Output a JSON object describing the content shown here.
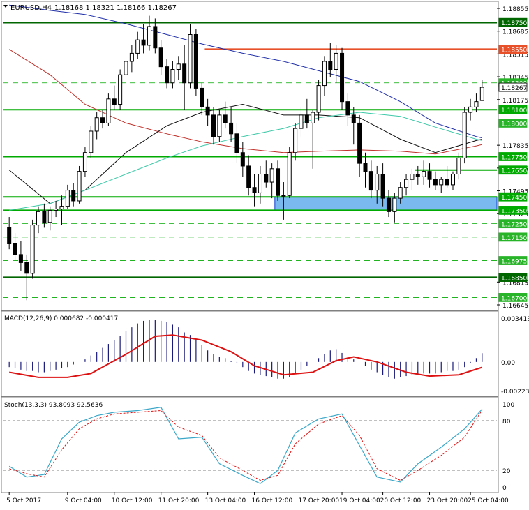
{
  "header": {
    "symbol_label": "EURUSD,H4",
    "ohlc_text": "1.18168 1.18321 1.18166 1.18267"
  },
  "colors": {
    "background": "#ffffff",
    "grid": "#c8c8c8",
    "support_green": "#00aa00",
    "resistance_dark_green": "#006600",
    "resistance_red": "#e8502a",
    "ma_blue": "#1f2ea8",
    "ma_red": "#c0302a",
    "ma_black": "#111111",
    "ma_teal": "#3ec9a8",
    "zone_blue": "#7ab8f0",
    "zone_blue_border": "#1040d0",
    "macd_hist": "#1a1a7a",
    "macd_signal": "#dd1111",
    "stoch_main": "#3aa7c9",
    "stoch_signal": "#dd1111",
    "candle_bear": "#000000",
    "candle_bull": "#ffffff"
  },
  "price_axis": {
    "ticks": [
      "1.18855",
      "1.18685",
      "1.18515",
      "1.18345",
      "1.18175",
      "1.17835",
      "1.17665",
      "1.17495",
      "1.17325",
      "1.16815",
      "1.16645"
    ],
    "level_labels": [
      {
        "text": "1.18750",
        "price": 1.1875,
        "style": "dark"
      },
      {
        "text": "1.18550",
        "price": 1.1855,
        "style": "red"
      },
      {
        "text": "1.18300",
        "price": 1.183,
        "style": "dash"
      },
      {
        "text": "1.18267",
        "price": 1.18267,
        "style": "current"
      },
      {
        "text": "1.18100",
        "price": 1.181,
        "style": "green"
      },
      {
        "text": "1.18000",
        "price": 1.18,
        "style": "dash"
      },
      {
        "text": "1.17750",
        "price": 1.1775,
        "style": "green"
      },
      {
        "text": "1.17650",
        "price": 1.1765,
        "style": "green"
      },
      {
        "text": "1.17450",
        "price": 1.1745,
        "style": "green"
      },
      {
        "text": "1.17350",
        "price": 1.1735,
        "style": "green"
      },
      {
        "text": "1.17250",
        "price": 1.1725,
        "style": "dash"
      },
      {
        "text": "1.17150",
        "price": 1.1715,
        "style": "dash"
      },
      {
        "text": "1.16975",
        "price": 1.16975,
        "style": "dash"
      },
      {
        "text": "1.16850",
        "price": 1.1685,
        "style": "dark"
      },
      {
        "text": "1.16700",
        "price": 1.167,
        "style": "dash"
      }
    ]
  },
  "macd_panel": {
    "label": "MACD(12,26,9) 0.000682 -0.000417",
    "ticks": [
      "0.003413",
      "0.00",
      "-0.002237"
    ]
  },
  "stoch_panel": {
    "label": "Stoch(13,3,3) 93.8093 92.5636",
    "ticks": [
      "100",
      "80",
      "20",
      "0"
    ]
  },
  "time_axis": {
    "labels": [
      "5 Oct 2017",
      "9 Oct 04:00",
      "10 Oct 12:00",
      "11 Oct 20:00",
      "13 Oct 04:00",
      "16 Oct 12:00",
      "17 Oct 20:00",
      "19 Oct 04:00",
      "20 Oct 12:00",
      "23 Oct 20:00",
      "25 Oct 04:00"
    ]
  },
  "chart_data": {
    "type": "candlestick",
    "symbol": "EURUSD",
    "timeframe": "H4",
    "ylim": [
      1.16645,
      1.18855
    ],
    "candles": [
      {
        "o": 1.1722,
        "h": 1.173,
        "l": 1.1706,
        "c": 1.171
      },
      {
        "o": 1.171,
        "h": 1.1718,
        "l": 1.1698,
        "c": 1.1702
      },
      {
        "o": 1.1702,
        "h": 1.1712,
        "l": 1.169,
        "c": 1.1696
      },
      {
        "o": 1.1696,
        "h": 1.1702,
        "l": 1.1668,
        "c": 1.1688
      },
      {
        "o": 1.1688,
        "h": 1.1728,
        "l": 1.1684,
        "c": 1.1724
      },
      {
        "o": 1.1724,
        "h": 1.1738,
        "l": 1.1718,
        "c": 1.1734
      },
      {
        "o": 1.1734,
        "h": 1.174,
        "l": 1.1722,
        "c": 1.1726
      },
      {
        "o": 1.1726,
        "h": 1.1738,
        "l": 1.172,
        "c": 1.1735
      },
      {
        "o": 1.1735,
        "h": 1.1742,
        "l": 1.173,
        "c": 1.1736
      },
      {
        "o": 1.1736,
        "h": 1.1746,
        "l": 1.1724,
        "c": 1.1738
      },
      {
        "o": 1.1738,
        "h": 1.1754,
        "l": 1.1736,
        "c": 1.175
      },
      {
        "o": 1.175,
        "h": 1.1755,
        "l": 1.1738,
        "c": 1.1742
      },
      {
        "o": 1.1742,
        "h": 1.1768,
        "l": 1.174,
        "c": 1.1764
      },
      {
        "o": 1.1764,
        "h": 1.1782,
        "l": 1.176,
        "c": 1.1778
      },
      {
        "o": 1.1778,
        "h": 1.1798,
        "l": 1.1774,
        "c": 1.1794
      },
      {
        "o": 1.1794,
        "h": 1.1808,
        "l": 1.1788,
        "c": 1.1804
      },
      {
        "o": 1.1804,
        "h": 1.181,
        "l": 1.1796,
        "c": 1.18
      },
      {
        "o": 1.18,
        "h": 1.1822,
        "l": 1.1798,
        "c": 1.1818
      },
      {
        "o": 1.1818,
        "h": 1.1828,
        "l": 1.181,
        "c": 1.1814
      },
      {
        "o": 1.1814,
        "h": 1.184,
        "l": 1.181,
        "c": 1.1836
      },
      {
        "o": 1.1836,
        "h": 1.185,
        "l": 1.183,
        "c": 1.1846
      },
      {
        "o": 1.1846,
        "h": 1.1858,
        "l": 1.1838,
        "c": 1.1852
      },
      {
        "o": 1.1852,
        "h": 1.1868,
        "l": 1.1848,
        "c": 1.1862
      },
      {
        "o": 1.1862,
        "h": 1.1874,
        "l": 1.1852,
        "c": 1.1858
      },
      {
        "o": 1.1858,
        "h": 1.188,
        "l": 1.1854,
        "c": 1.1872
      },
      {
        "o": 1.1872,
        "h": 1.1878,
        "l": 1.1852,
        "c": 1.1856
      },
      {
        "o": 1.1856,
        "h": 1.1862,
        "l": 1.1836,
        "c": 1.1842
      },
      {
        "o": 1.1842,
        "h": 1.1848,
        "l": 1.1826,
        "c": 1.183
      },
      {
        "o": 1.183,
        "h": 1.1846,
        "l": 1.1826,
        "c": 1.184
      },
      {
        "o": 1.184,
        "h": 1.185,
        "l": 1.1832,
        "c": 1.1844
      },
      {
        "o": 1.1844,
        "h": 1.1858,
        "l": 1.181,
        "c": 1.183
      },
      {
        "o": 1.183,
        "h": 1.1874,
        "l": 1.1826,
        "c": 1.1866
      },
      {
        "o": 1.1866,
        "h": 1.187,
        "l": 1.182,
        "c": 1.1826
      },
      {
        "o": 1.1826,
        "h": 1.183,
        "l": 1.1806,
        "c": 1.1812
      },
      {
        "o": 1.1812,
        "h": 1.1818,
        "l": 1.1798,
        "c": 1.1806
      },
      {
        "o": 1.1806,
        "h": 1.1812,
        "l": 1.1784,
        "c": 1.179
      },
      {
        "o": 1.179,
        "h": 1.181,
        "l": 1.1786,
        "c": 1.1806
      },
      {
        "o": 1.1806,
        "h": 1.1816,
        "l": 1.1796,
        "c": 1.18
      },
      {
        "o": 1.18,
        "h": 1.1812,
        "l": 1.1786,
        "c": 1.1792
      },
      {
        "o": 1.1792,
        "h": 1.18,
        "l": 1.177,
        "c": 1.1778
      },
      {
        "o": 1.1778,
        "h": 1.1786,
        "l": 1.176,
        "c": 1.1768
      },
      {
        "o": 1.1768,
        "h": 1.1776,
        "l": 1.1746,
        "c": 1.1752
      },
      {
        "o": 1.1752,
        "h": 1.1762,
        "l": 1.1738,
        "c": 1.1748
      },
      {
        "o": 1.1748,
        "h": 1.1768,
        "l": 1.174,
        "c": 1.1762
      },
      {
        "o": 1.1762,
        "h": 1.1772,
        "l": 1.1752,
        "c": 1.1756
      },
      {
        "o": 1.1756,
        "h": 1.177,
        "l": 1.1744,
        "c": 1.1766
      },
      {
        "o": 1.1766,
        "h": 1.1772,
        "l": 1.1742,
        "c": 1.1746
      },
      {
        "o": 1.1746,
        "h": 1.1756,
        "l": 1.1728,
        "c": 1.1746
      },
      {
        "o": 1.1746,
        "h": 1.1782,
        "l": 1.1744,
        "c": 1.1778
      },
      {
        "o": 1.1778,
        "h": 1.18,
        "l": 1.1772,
        "c": 1.1796
      },
      {
        "o": 1.1796,
        "h": 1.1812,
        "l": 1.179,
        "c": 1.1806
      },
      {
        "o": 1.1806,
        "h": 1.1818,
        "l": 1.1796,
        "c": 1.18
      },
      {
        "o": 1.18,
        "h": 1.181,
        "l": 1.1766,
        "c": 1.1808
      },
      {
        "o": 1.1808,
        "h": 1.1832,
        "l": 1.1802,
        "c": 1.1828
      },
      {
        "o": 1.1828,
        "h": 1.185,
        "l": 1.182,
        "c": 1.1846
      },
      {
        "o": 1.1846,
        "h": 1.186,
        "l": 1.1834,
        "c": 1.184
      },
      {
        "o": 1.184,
        "h": 1.1858,
        "l": 1.183,
        "c": 1.1852
      },
      {
        "o": 1.1852,
        "h": 1.1856,
        "l": 1.181,
        "c": 1.1816
      },
      {
        "o": 1.1816,
        "h": 1.1822,
        "l": 1.1798,
        "c": 1.1806
      },
      {
        "o": 1.1806,
        "h": 1.1812,
        "l": 1.1784,
        "c": 1.18
      },
      {
        "o": 1.18,
        "h": 1.1806,
        "l": 1.176,
        "c": 1.177
      },
      {
        "o": 1.177,
        "h": 1.1778,
        "l": 1.1752,
        "c": 1.1764
      },
      {
        "o": 1.1764,
        "h": 1.1772,
        "l": 1.1744,
        "c": 1.175
      },
      {
        "o": 1.175,
        "h": 1.1768,
        "l": 1.174,
        "c": 1.1762
      },
      {
        "o": 1.1762,
        "h": 1.177,
        "l": 1.1738,
        "c": 1.1744
      },
      {
        "o": 1.1744,
        "h": 1.175,
        "l": 1.173,
        "c": 1.1734
      },
      {
        "o": 1.1734,
        "h": 1.1748,
        "l": 1.1726,
        "c": 1.1744
      },
      {
        "o": 1.1744,
        "h": 1.1756,
        "l": 1.174,
        "c": 1.1752
      },
      {
        "o": 1.1752,
        "h": 1.1762,
        "l": 1.1746,
        "c": 1.1758
      },
      {
        "o": 1.1758,
        "h": 1.1766,
        "l": 1.175,
        "c": 1.1762
      },
      {
        "o": 1.1762,
        "h": 1.1768,
        "l": 1.1754,
        "c": 1.176
      },
      {
        "o": 1.176,
        "h": 1.1772,
        "l": 1.1754,
        "c": 1.1764
      },
      {
        "o": 1.1764,
        "h": 1.177,
        "l": 1.1752,
        "c": 1.1758
      },
      {
        "o": 1.1758,
        "h": 1.1764,
        "l": 1.175,
        "c": 1.1754
      },
      {
        "o": 1.1754,
        "h": 1.176,
        "l": 1.1748,
        "c": 1.1758
      },
      {
        "o": 1.1758,
        "h": 1.1768,
        "l": 1.1752,
        "c": 1.1754
      },
      {
        "o": 1.1754,
        "h": 1.1764,
        "l": 1.175,
        "c": 1.1762
      },
      {
        "o": 1.1762,
        "h": 1.1778,
        "l": 1.1758,
        "c": 1.1774
      },
      {
        "o": 1.1774,
        "h": 1.1812,
        "l": 1.177,
        "c": 1.1808
      },
      {
        "o": 1.1808,
        "h": 1.1818,
        "l": 1.1802,
        "c": 1.1812
      },
      {
        "o": 1.1812,
        "h": 1.1822,
        "l": 1.1808,
        "c": 1.1816
      },
      {
        "o": 1.18168,
        "h": 1.18321,
        "l": 1.18166,
        "c": 1.18267
      }
    ],
    "indicators": {
      "ma_blue": [
        [
          0,
          1.1888
        ],
        [
          7,
          1.1884
        ],
        [
          13,
          1.1881
        ],
        [
          20,
          1.1874
        ],
        [
          27,
          1.1866
        ],
        [
          33,
          1.1859
        ],
        [
          40,
          1.1852
        ],
        [
          47,
          1.1846
        ],
        [
          53,
          1.1839
        ],
        [
          60,
          1.1831
        ],
        [
          67,
          1.1816
        ],
        [
          73,
          1.18
        ],
        [
          80,
          1.179
        ],
        [
          81,
          1.1789
        ]
      ],
      "ma_red": [
        [
          0,
          1.1855
        ],
        [
          7,
          1.1836
        ],
        [
          13,
          1.1814
        ],
        [
          20,
          1.18
        ],
        [
          27,
          1.1792
        ],
        [
          33,
          1.1786
        ],
        [
          40,
          1.1781
        ],
        [
          47,
          1.1778
        ],
        [
          53,
          1.1779
        ],
        [
          60,
          1.178
        ],
        [
          67,
          1.1779
        ],
        [
          73,
          1.1777
        ],
        [
          80,
          1.1783
        ],
        [
          81,
          1.1784
        ]
      ],
      "ma_black": [
        [
          0,
          1.1765
        ],
        [
          7,
          1.174
        ],
        [
          13,
          1.175
        ],
        [
          20,
          1.1778
        ],
        [
          27,
          1.1798
        ],
        [
          33,
          1.1808
        ],
        [
          40,
          1.1814
        ],
        [
          47,
          1.1806
        ],
        [
          53,
          1.1806
        ],
        [
          60,
          1.1804
        ],
        [
          67,
          1.1788
        ],
        [
          73,
          1.1778
        ],
        [
          80,
          1.1787
        ],
        [
          81,
          1.1788
        ]
      ],
      "ma_teal": [
        [
          0,
          1.1735
        ],
        [
          7,
          1.174
        ],
        [
          13,
          1.175
        ],
        [
          20,
          1.1762
        ],
        [
          27,
          1.1774
        ],
        [
          33,
          1.1783
        ],
        [
          40,
          1.179
        ],
        [
          47,
          1.1796
        ],
        [
          53,
          1.1804
        ],
        [
          60,
          1.1808
        ],
        [
          67,
          1.1805
        ],
        [
          73,
          1.1797
        ],
        [
          80,
          1.1788
        ],
        [
          81,
          1.1787
        ]
      ]
    },
    "macd": {
      "params": "12,26,9",
      "ylim": [
        -0.002237,
        0.003413
      ],
      "histogram": [
        -0.0004,
        -0.0005,
        -0.0006,
        -0.0007,
        -0.0007,
        -0.0008,
        -0.0008,
        -0.0007,
        -0.0006,
        -0.0005,
        -0.0004,
        -0.0002,
        0.0,
        0.0002,
        0.0005,
        0.0008,
        0.0011,
        0.0014,
        0.0017,
        0.002,
        0.0024,
        0.0027,
        0.003,
        0.0032,
        0.0033,
        0.0033,
        0.0032,
        0.0031,
        0.0029,
        0.0027,
        0.0023,
        0.0021,
        0.0017,
        0.0013,
        0.0009,
        0.0006,
        0.0004,
        0.0003,
        0.0001,
        -0.0001,
        -0.0004,
        -0.0007,
        -0.0009,
        -0.001,
        -0.0011,
        -0.0012,
        -0.0013,
        -0.0013,
        -0.0012,
        -0.0009,
        -0.0006,
        -0.0003,
        0.0,
        0.0003,
        0.0006,
        0.0009,
        0.001,
        0.0007,
        0.0004,
        0.0002,
        0.0,
        -0.0003,
        -0.0006,
        -0.0008,
        -0.001,
        -0.0012,
        -0.0013,
        -0.0012,
        -0.0011,
        -0.001,
        -0.001,
        -0.0009,
        -0.0009,
        -0.0009,
        -0.0008,
        -0.0007,
        -0.0007,
        -0.0006,
        -0.0004,
        -0.0001,
        0.0003,
        0.000682
      ],
      "signal": [
        [
          0,
          -0.0008
        ],
        [
          5,
          -0.0012
        ],
        [
          10,
          -0.0012
        ],
        [
          14,
          -0.0009
        ],
        [
          20,
          0.0006
        ],
        [
          25,
          0.002
        ],
        [
          28,
          0.0021
        ],
        [
          33,
          0.0017
        ],
        [
          38,
          0.0008
        ],
        [
          42,
          -0.0003
        ],
        [
          47,
          -0.001
        ],
        [
          52,
          -0.0008
        ],
        [
          56,
          0.0001
        ],
        [
          59,
          0.0004
        ],
        [
          63,
          0.0
        ],
        [
          68,
          -0.0008
        ],
        [
          72,
          -0.0011
        ],
        [
          77,
          -0.001
        ],
        [
          81,
          -0.000417
        ]
      ]
    },
    "stochastic": {
      "params": "13,3,3",
      "ylim": [
        0,
        100
      ],
      "main": [
        [
          0,
          25
        ],
        [
          3,
          12
        ],
        [
          6,
          15
        ],
        [
          9,
          58
        ],
        [
          12,
          78
        ],
        [
          15,
          86
        ],
        [
          18,
          90
        ],
        [
          22,
          92
        ],
        [
          26,
          96
        ],
        [
          29,
          58
        ],
        [
          33,
          60
        ],
        [
          36,
          28
        ],
        [
          40,
          14
        ],
        [
          43,
          4
        ],
        [
          46,
          20
        ],
        [
          49,
          65
        ],
        [
          53,
          82
        ],
        [
          57,
          88
        ],
        [
          60,
          50
        ],
        [
          63,
          12
        ],
        [
          67,
          6
        ],
        [
          70,
          28
        ],
        [
          74,
          48
        ],
        [
          78,
          70
        ],
        [
          81,
          93.8093
        ]
      ],
      "signal": [
        [
          0,
          22
        ],
        [
          3,
          16
        ],
        [
          6,
          12
        ],
        [
          9,
          45
        ],
        [
          12,
          70
        ],
        [
          15,
          82
        ],
        [
          18,
          88
        ],
        [
          22,
          90
        ],
        [
          26,
          92
        ],
        [
          29,
          72
        ],
        [
          33,
          62
        ],
        [
          36,
          35
        ],
        [
          40,
          20
        ],
        [
          43,
          8
        ],
        [
          46,
          14
        ],
        [
          49,
          52
        ],
        [
          53,
          76
        ],
        [
          57,
          86
        ],
        [
          60,
          62
        ],
        [
          63,
          22
        ],
        [
          67,
          8
        ],
        [
          70,
          20
        ],
        [
          74,
          38
        ],
        [
          78,
          60
        ],
        [
          81,
          92.5636
        ]
      ]
    },
    "blue_zone": {
      "from_bar": 46,
      "to_bar": 81,
      "price_low": 1.1735,
      "price_high": 1.1745
    },
    "red_segment": {
      "from_bar": 34,
      "to_bar": 81,
      "price": 1.1855
    },
    "dark_segment_1765": {
      "from_bar": 70,
      "to_bar": 81,
      "price": 1.1765
    },
    "grid": false
  }
}
